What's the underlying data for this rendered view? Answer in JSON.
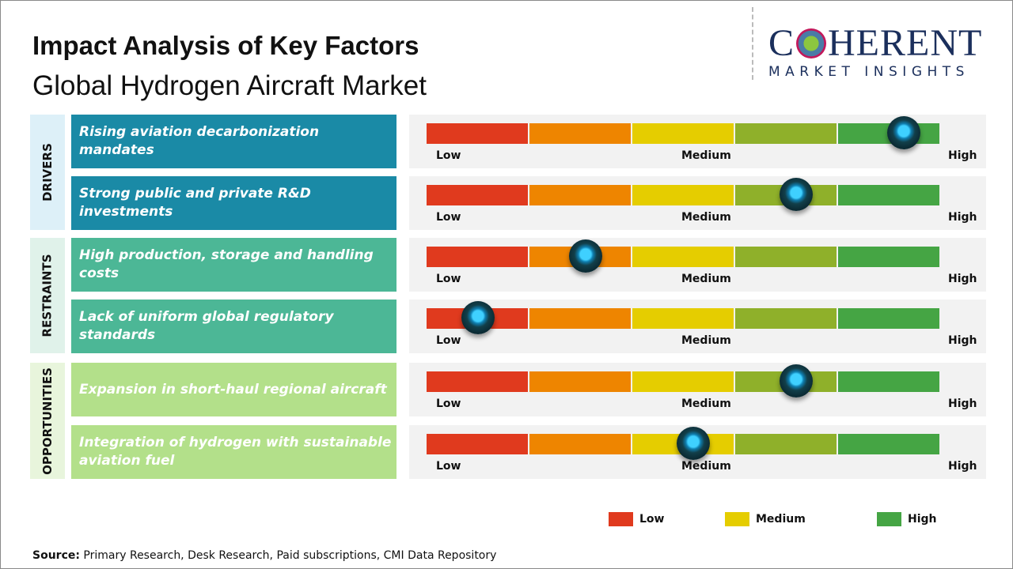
{
  "header": {
    "title": "Impact Analysis of Key Factors",
    "subtitle": "Global Hydrogen Aircraft Market"
  },
  "logo": {
    "word": "COHERENT",
    "tagline": "MARKET INSIGHTS"
  },
  "chart_data": {
    "type": "gauge-bars",
    "scale_labels": [
      "Low",
      "Medium",
      "High"
    ],
    "segment_colors": [
      "#e03a1e",
      "#ee8500",
      "#e5cd00",
      "#8fb02a",
      "#45a544"
    ],
    "groups": [
      {
        "name": "DRIVERS",
        "color": "#1a8aa6",
        "bg": "#ddf0f8",
        "factors": [
          {
            "label": "Rising aviation decarbonization mandates",
            "impact": 0.93
          },
          {
            "label": "Strong public and private R&D investments",
            "impact": 0.72
          }
        ]
      },
      {
        "name": "RESTRAINTS",
        "color": "#4cb796",
        "bg": "#e0f2ea",
        "factors": [
          {
            "label": "High production, storage and handling costs",
            "impact": 0.31
          },
          {
            "label": "Lack of uniform global regulatory standards",
            "impact": 0.1
          }
        ]
      },
      {
        "name": "OPPORTUNITIES",
        "color": "#b3e08a",
        "bg": "#e8f5dc",
        "factors": [
          {
            "label": "Expansion in short-haul regional aircraft",
            "impact": 0.72
          },
          {
            "label": "Integration of hydrogen with sustainable aviation fuel",
            "impact": 0.52
          }
        ]
      }
    ],
    "legend": [
      {
        "label": "Low",
        "color": "#e03a1e"
      },
      {
        "label": "Medium",
        "color": "#e5cd00"
      },
      {
        "label": "High",
        "color": "#45a544"
      }
    ]
  },
  "footer": {
    "source_label": "Source:",
    "source_text": " Primary Research, Desk Research, Paid subscriptions, CMI Data Repository"
  }
}
